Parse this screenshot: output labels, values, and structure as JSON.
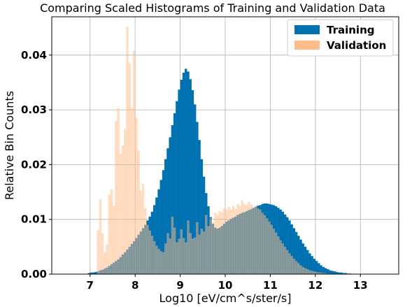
{
  "chart_data": {
    "type": "bar",
    "title": "Comparing Scaled Histograms of Training and Validation Data",
    "xlabel": "Log10 [eV/cm^s/ster/s]",
    "ylabel": "Relative Bin Counts",
    "xlim": [
      6.15,
      13.85
    ],
    "ylim": [
      0.0,
      0.047
    ],
    "xticks": [
      "7",
      "8",
      "9",
      "10",
      "11",
      "12",
      "13"
    ],
    "yticks": [
      "0.00",
      "0.01",
      "0.02",
      "0.03",
      "0.04"
    ],
    "grid": true,
    "legend_position": "top-right",
    "bin_start": 6.95,
    "bin_width": 0.05,
    "series": [
      {
        "name": "Training",
        "color": "#0072B2",
        "values": [
          0.0002,
          0.0003,
          0.0003,
          0.0004,
          0.0005,
          0.0007,
          0.0008,
          0.001,
          0.0012,
          0.0015,
          0.0018,
          0.0021,
          0.0024,
          0.0027,
          0.0031,
          0.0036,
          0.004,
          0.0045,
          0.005,
          0.0055,
          0.006,
          0.0066,
          0.0072,
          0.0078,
          0.0084,
          0.009,
          0.0098,
          0.0105,
          0.0114,
          0.0126,
          0.014,
          0.0155,
          0.0172,
          0.019,
          0.021,
          0.023,
          0.025,
          0.0272,
          0.0294,
          0.0316,
          0.0337,
          0.0355,
          0.0368,
          0.0375,
          0.037,
          0.0356,
          0.0336,
          0.031,
          0.0278,
          0.0245,
          0.021,
          0.0178,
          0.0148,
          0.0124,
          0.0104,
          0.0092,
          0.0085,
          0.0083,
          0.0085,
          0.0088,
          0.0092,
          0.0096,
          0.0098,
          0.0101,
          0.0103,
          0.0105,
          0.0108,
          0.011,
          0.0112,
          0.0113,
          0.0115,
          0.0117,
          0.0119,
          0.0121,
          0.0123,
          0.0125,
          0.0126,
          0.0128,
          0.0129,
          0.0129,
          0.0128,
          0.0127,
          0.0126,
          0.0124,
          0.0121,
          0.0118,
          0.0114,
          0.0109,
          0.0104,
          0.0098,
          0.0091,
          0.0084,
          0.0077,
          0.007,
          0.0063,
          0.0056,
          0.005,
          0.0044,
          0.0038,
          0.0033,
          0.0028,
          0.0024,
          0.002,
          0.0016,
          0.0013,
          0.0011,
          0.0009,
          0.0007,
          0.0006,
          0.0005,
          0.0004,
          0.0003,
          0.0003,
          0.0002,
          0.0002,
          0.0001,
          0.0001
        ]
      },
      {
        "name": "Validation",
        "color": "#FFBB88",
        "values": [
          0.0,
          0.0,
          0.0,
          0.0,
          0.008,
          0.0137,
          0.0075,
          0.004,
          0.0055,
          0.0145,
          0.0155,
          0.0125,
          0.028,
          0.0303,
          0.022,
          0.0235,
          0.0265,
          0.0452,
          0.0385,
          0.0303,
          0.0408,
          0.0285,
          0.0226,
          0.0152,
          0.0165,
          0.012,
          0.009,
          0.008,
          0.007,
          0.006,
          0.0052,
          0.0046,
          0.0042,
          0.004,
          0.0056,
          0.0075,
          0.0065,
          0.0105,
          0.0085,
          0.0058,
          0.0065,
          0.0082,
          0.0066,
          0.0058,
          0.0098,
          0.0075,
          0.0065,
          0.0067,
          0.0095,
          0.0072,
          0.0083,
          0.0078,
          0.0108,
          0.0088,
          0.0102,
          0.0095,
          0.0112,
          0.0108,
          0.0115,
          0.0113,
          0.012,
          0.0118,
          0.0123,
          0.0118,
          0.0125,
          0.012,
          0.0128,
          0.0124,
          0.0135,
          0.0128,
          0.0126,
          0.0132,
          0.0128,
          0.0122,
          0.0125,
          0.012,
          0.0118,
          0.0112,
          0.0108,
          0.0102,
          0.0096,
          0.009,
          0.0083,
          0.0076,
          0.0069,
          0.0062,
          0.0056,
          0.005,
          0.0044,
          0.0038,
          0.0033,
          0.0028,
          0.0024,
          0.002,
          0.0016,
          0.0013,
          0.0011,
          0.0009,
          0.0007,
          0.0006,
          0.0005,
          0.0004,
          0.0003,
          0.0003,
          0.0002,
          0.0002,
          0.0001,
          0.0001,
          0.0,
          0.0,
          0.0,
          0.0,
          0.0,
          0.0,
          0.0,
          0.0
        ]
      }
    ]
  }
}
